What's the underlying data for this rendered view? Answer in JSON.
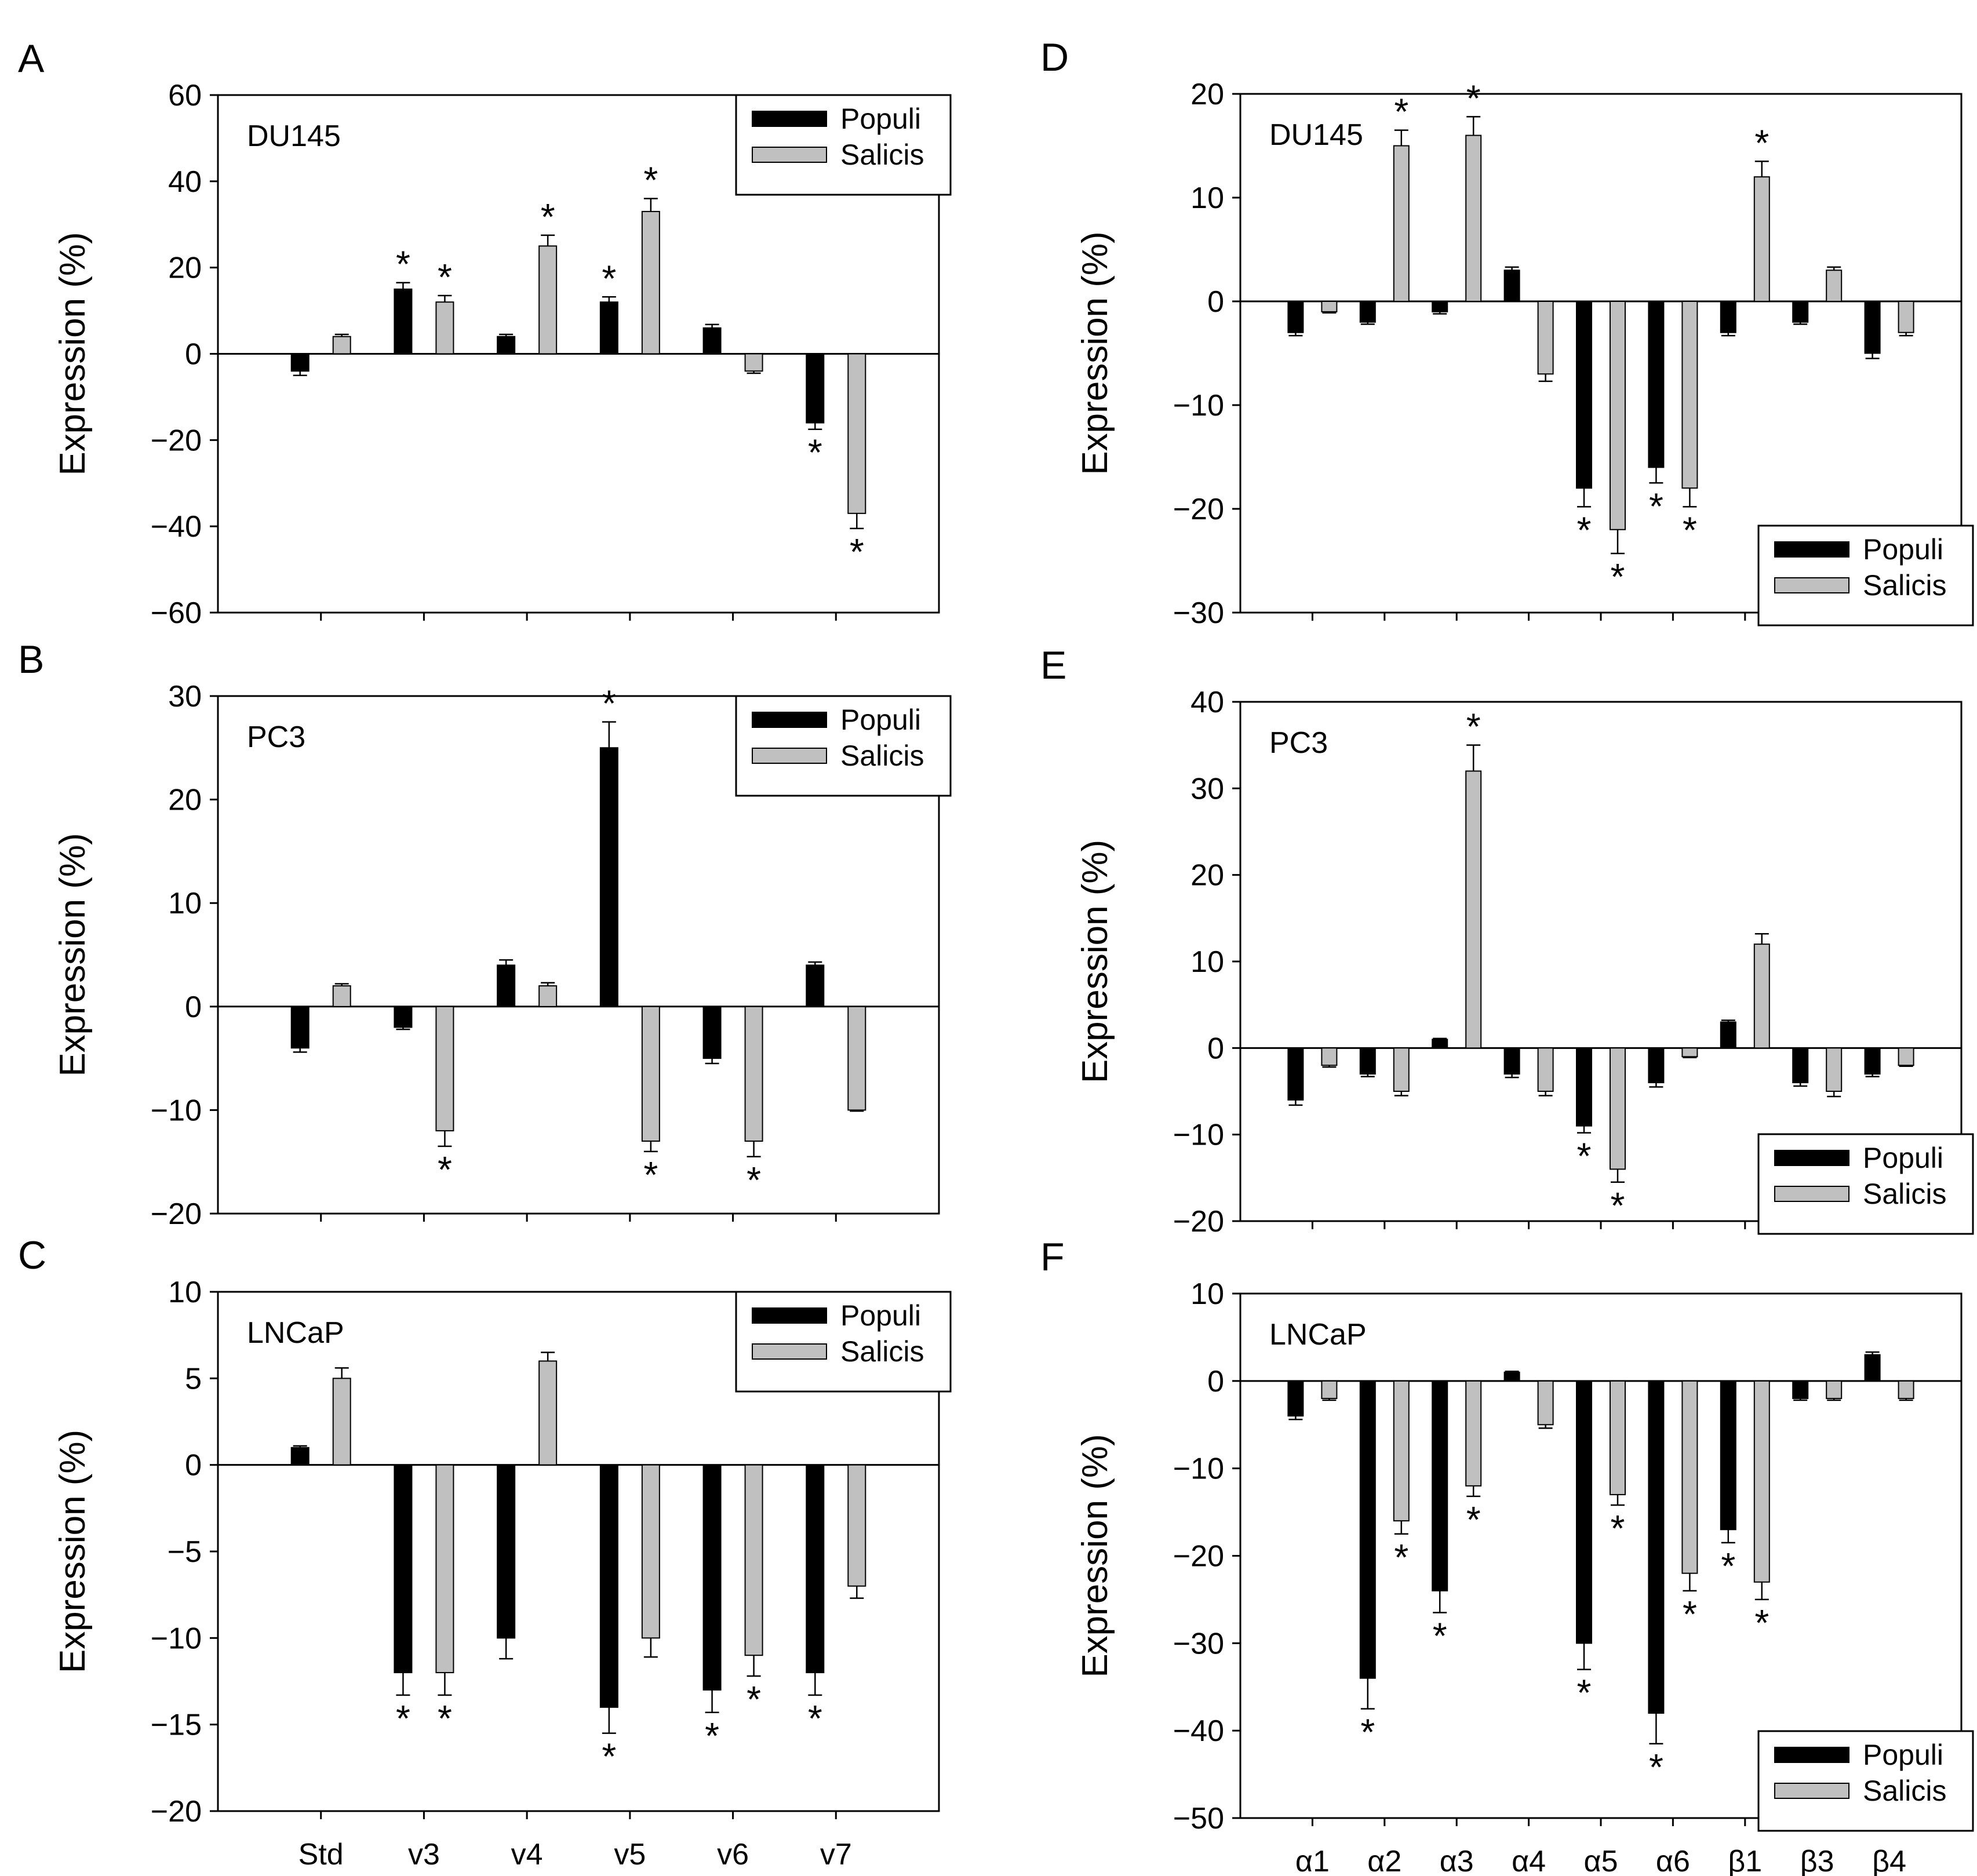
{
  "figure": {
    "colors": {
      "populi": "#000000",
      "salicis": "#c0c0c0",
      "axis": "#000000",
      "background": "#ffffff"
    }
  },
  "chart_data": [
    {
      "type": "bar",
      "panel": "A",
      "cell_line": "DU145",
      "categories": [
        "Std",
        "v3",
        "v4",
        "v5",
        "v6",
        "v7"
      ],
      "ylabel": "Expression (%)",
      "ylim": [
        -60,
        60
      ],
      "yticks": [
        -60,
        -40,
        -20,
        0,
        20,
        40,
        60
      ],
      "legend": {
        "position": "top-right"
      },
      "show_categories": false,
      "series": [
        {
          "name": "Populi",
          "values": [
            -4,
            15,
            4,
            12,
            6,
            -16
          ],
          "errors": [
            1,
            1.5,
            0.5,
            1.2,
            0.8,
            1.5
          ],
          "significant": [
            false,
            true,
            false,
            true,
            false,
            true
          ]
        },
        {
          "name": "Salicis",
          "values": [
            4,
            12,
            25,
            33,
            -4,
            -37
          ],
          "errors": [
            0.5,
            1.5,
            2.5,
            3,
            0.5,
            3.5
          ],
          "significant": [
            false,
            true,
            true,
            true,
            false,
            true
          ]
        }
      ]
    },
    {
      "type": "bar",
      "panel": "B",
      "cell_line": "PC3",
      "categories": [
        "Std",
        "v3",
        "v4",
        "v5",
        "v6",
        "v7"
      ],
      "ylabel": "Expression (%)",
      "ylim": [
        -20,
        30
      ],
      "yticks": [
        -20,
        -10,
        0,
        10,
        20,
        30
      ],
      "legend": {
        "position": "top-right"
      },
      "show_categories": false,
      "series": [
        {
          "name": "Populi",
          "values": [
            -4,
            -2,
            4,
            25,
            -5,
            4
          ],
          "errors": [
            0.4,
            0.2,
            0.5,
            2.5,
            0.5,
            0.3
          ],
          "significant": [
            false,
            false,
            false,
            true,
            false,
            false
          ]
        },
        {
          "name": "Salicis",
          "values": [
            2,
            -12,
            2,
            -13,
            -13,
            -10
          ],
          "errors": [
            0.2,
            1.5,
            0.3,
            1,
            1.5,
            0.1
          ],
          "significant": [
            false,
            true,
            false,
            true,
            true,
            false
          ]
        }
      ]
    },
    {
      "type": "bar",
      "panel": "C",
      "cell_line": "LNCaP",
      "categories": [
        "Std",
        "v3",
        "v4",
        "v5",
        "v6",
        "v7"
      ],
      "ylabel": "Expression (%)",
      "ylim": [
        -20,
        10
      ],
      "yticks": [
        -20,
        -15,
        -10,
        -5,
        0,
        5,
        10
      ],
      "legend": {
        "position": "top-right"
      },
      "show_categories": true,
      "series": [
        {
          "name": "Populi",
          "values": [
            1,
            -12,
            -10,
            -14,
            -13,
            -12
          ],
          "errors": [
            0.1,
            1.3,
            1.2,
            1.5,
            1.3,
            1.3
          ],
          "significant": [
            false,
            true,
            false,
            true,
            true,
            true
          ]
        },
        {
          "name": "Salicis",
          "values": [
            5,
            -12,
            6,
            -10,
            -11,
            -7
          ],
          "errors": [
            0.6,
            1.3,
            0.5,
            1.1,
            1.2,
            0.7
          ],
          "significant": [
            false,
            true,
            false,
            false,
            true,
            false
          ]
        }
      ]
    },
    {
      "type": "bar",
      "panel": "D",
      "cell_line": "DU145",
      "categories": [
        "α1",
        "α2",
        "α3",
        "α4",
        "α5",
        "α6",
        "β1",
        "β3",
        "β4"
      ],
      "ylabel": "Expression (%)",
      "ylim": [
        -30,
        20
      ],
      "yticks": [
        -30,
        -20,
        -10,
        0,
        10,
        20
      ],
      "legend": {
        "position": "bottom-right"
      },
      "show_categories": false,
      "series": [
        {
          "name": "Populi",
          "values": [
            -3,
            -2,
            -1,
            3,
            -18,
            -16,
            -3,
            -2,
            -5
          ],
          "errors": [
            0.3,
            0.2,
            0.2,
            0.3,
            1.8,
            1.5,
            0.3,
            0.2,
            0.5
          ],
          "significant": [
            false,
            false,
            false,
            false,
            true,
            true,
            false,
            false,
            false
          ]
        },
        {
          "name": "Salicis",
          "values": [
            -1,
            15,
            16,
            -7,
            -22,
            -18,
            12,
            3,
            -3
          ],
          "errors": [
            0.1,
            1.5,
            1.8,
            0.7,
            2.3,
            1.8,
            1.5,
            0.3,
            0.3
          ],
          "significant": [
            false,
            true,
            true,
            false,
            true,
            true,
            true,
            false,
            false
          ]
        }
      ]
    },
    {
      "type": "bar",
      "panel": "E",
      "cell_line": "PC3",
      "categories": [
        "α1",
        "α2",
        "α3",
        "α4",
        "α5",
        "α6",
        "β1",
        "β3",
        "β4"
      ],
      "ylabel": "Expression (%)",
      "ylim": [
        -20,
        40
      ],
      "yticks": [
        -20,
        -10,
        0,
        10,
        20,
        30,
        40
      ],
      "legend": {
        "position": "bottom-right"
      },
      "show_categories": false,
      "series": [
        {
          "name": "Populi",
          "values": [
            -6,
            -3,
            1,
            -3,
            -9,
            -4,
            3,
            -4,
            -3
          ],
          "errors": [
            0.6,
            0.3,
            0.1,
            0.4,
            0.8,
            0.5,
            0.2,
            0.4,
            0.3
          ],
          "significant": [
            false,
            false,
            false,
            false,
            true,
            false,
            false,
            false,
            false
          ]
        },
        {
          "name": "Salicis",
          "values": [
            -2,
            -5,
            32,
            -5,
            -14,
            -1,
            12,
            -5,
            -2
          ],
          "errors": [
            0.2,
            0.5,
            3,
            0.5,
            1.5,
            0.1,
            1.2,
            0.6,
            0.1
          ],
          "significant": [
            false,
            false,
            true,
            false,
            true,
            false,
            false,
            false,
            false
          ]
        }
      ]
    },
    {
      "type": "bar",
      "panel": "F",
      "cell_line": "LNCaP",
      "categories": [
        "α1",
        "α2",
        "α3",
        "α4",
        "α5",
        "α6",
        "β1",
        "β3",
        "β4"
      ],
      "ylabel": "Expression (%)",
      "ylim": [
        -50,
        10
      ],
      "yticks": [
        -50,
        -40,
        -30,
        -20,
        -10,
        0,
        10
      ],
      "legend": {
        "position": "bottom-right"
      },
      "show_categories": true,
      "series": [
        {
          "name": "Populi",
          "values": [
            -4,
            -34,
            -24,
            1,
            -30,
            -38,
            -17,
            -2,
            3
          ],
          "errors": [
            0.4,
            3.5,
            2.5,
            0.1,
            3,
            3.5,
            1.5,
            0.2,
            0.3
          ],
          "significant": [
            false,
            true,
            true,
            false,
            true,
            true,
            true,
            false,
            false
          ]
        },
        {
          "name": "Salicis",
          "values": [
            -2,
            -16,
            -12,
            -5,
            -13,
            -22,
            -23,
            -2,
            -2
          ],
          "errors": [
            0.2,
            1.5,
            1.2,
            0.4,
            1.2,
            2,
            2,
            0.2,
            0.2
          ],
          "significant": [
            false,
            true,
            true,
            false,
            true,
            true,
            true,
            false,
            false
          ]
        }
      ]
    }
  ]
}
